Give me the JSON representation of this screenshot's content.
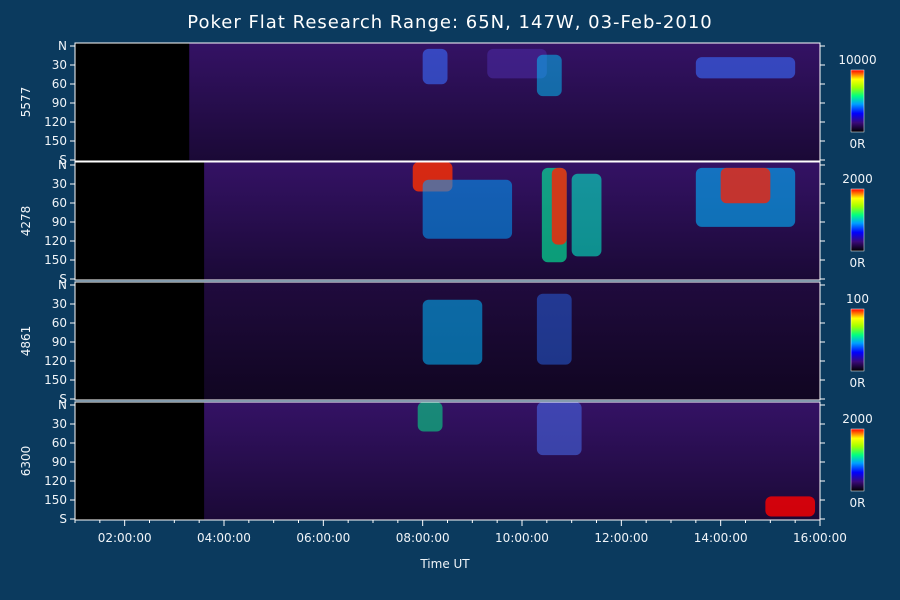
{
  "chart_data": {
    "type": "heatmap",
    "title": "Poker Flat Research Range: 65N, 147W, 03-Feb-2010",
    "xlabel": "Time UT",
    "x_range_hours": [
      1.0,
      16.0
    ],
    "x_ticks": [
      "02:00:00",
      "04:00:00",
      "06:00:00",
      "08:00:00",
      "10:00:00",
      "12:00:00",
      "14:00:00",
      "16:00:00"
    ],
    "x_tick_hours": [
      2,
      4,
      6,
      8,
      10,
      12,
      14,
      16
    ],
    "y_ticks": [
      "N",
      "30",
      "60",
      "90",
      "120",
      "150",
      "S"
    ],
    "y_tick_values": [
      0,
      30,
      60,
      90,
      120,
      150,
      180
    ],
    "panels": [
      {
        "label": "5577",
        "colorbar_max": "10000",
        "colorbar_min": "0R"
      },
      {
        "label": "4278",
        "colorbar_max": "2000",
        "colorbar_min": "0R"
      },
      {
        "label": "4861",
        "colorbar_max": "100",
        "colorbar_min": "0R"
      },
      {
        "label": "6300",
        "colorbar_max": "2000",
        "colorbar_min": "0R"
      }
    ],
    "colors": {
      "background": "#0b3a5e",
      "no_data": "#000000",
      "base_emission": "#2a0f4e"
    }
  }
}
